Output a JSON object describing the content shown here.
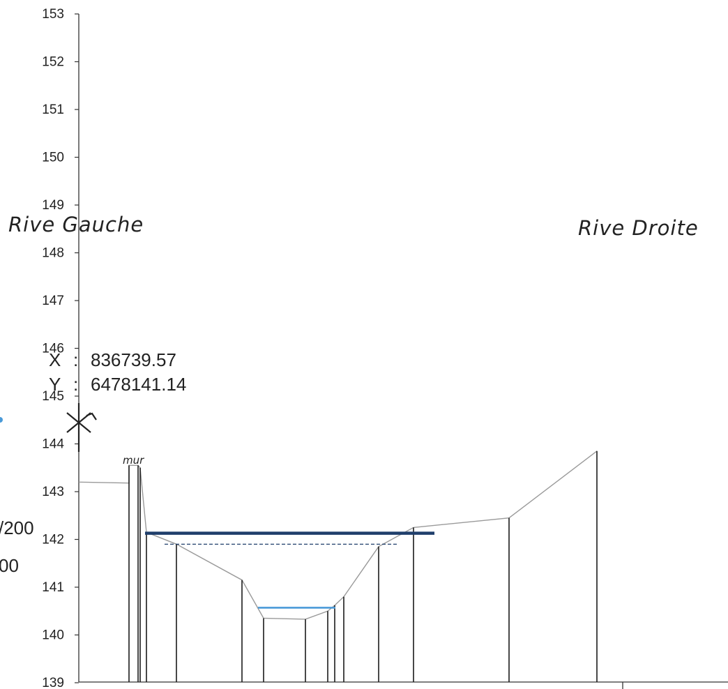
{
  "chart_data": {
    "type": "line",
    "y_axis": {
      "ylim": [
        139,
        153
      ],
      "ticks": [
        "153",
        "152",
        "151",
        "150",
        "149",
        "148",
        "147",
        "146",
        "145",
        "144",
        "143",
        "142",
        "141",
        "140",
        "139"
      ]
    },
    "labels": {
      "left_bank": "Rive Gauche",
      "right_bank": "Rive Droite",
      "wall": "mur"
    },
    "point": {
      "x_label": "X",
      "x_sep": ":",
      "x_value": "836739.57",
      "y_label": "Y",
      "y_sep": ":",
      "y_value": "6478141.14"
    },
    "edge_fragments": [
      "/200",
      "00"
    ],
    "profile": [
      {
        "station": 0,
        "z": 143.2
      },
      {
        "station": 72,
        "z": 143.18
      },
      {
        "station": 72,
        "z": 143.55
      },
      {
        "station": 85,
        "z": 143.55
      },
      {
        "station": 88,
        "z": 143.5
      },
      {
        "station": 97,
        "z": 142.15
      },
      {
        "station": 140,
        "z": 141.9
      },
      {
        "station": 234,
        "z": 141.15
      },
      {
        "station": 265,
        "z": 140.35
      },
      {
        "station": 325,
        "z": 140.33
      },
      {
        "station": 357,
        "z": 140.5
      },
      {
        "station": 367,
        "z": 140.62
      },
      {
        "station": 380,
        "z": 140.8
      },
      {
        "station": 430,
        "z": 141.85
      },
      {
        "station": 480,
        "z": 142.25
      },
      {
        "station": 617,
        "z": 142.45
      },
      {
        "station": 743,
        "z": 143.85
      }
    ],
    "verticals": [
      72,
      85,
      88,
      97,
      140,
      234,
      265,
      325,
      357,
      367,
      380,
      430,
      480,
      617,
      743
    ],
    "water_levels": [
      {
        "kind": "high",
        "from": 95,
        "to": 510,
        "z": 142.13,
        "color": "#1f3e6b"
      },
      {
        "kind": "dashed",
        "from": 123,
        "to": 457,
        "z": 141.9,
        "color": "#1f3e6b"
      },
      {
        "kind": "low",
        "from": 257,
        "to": 368,
        "z": 140.57,
        "color": "#4a9ad8"
      }
    ]
  }
}
